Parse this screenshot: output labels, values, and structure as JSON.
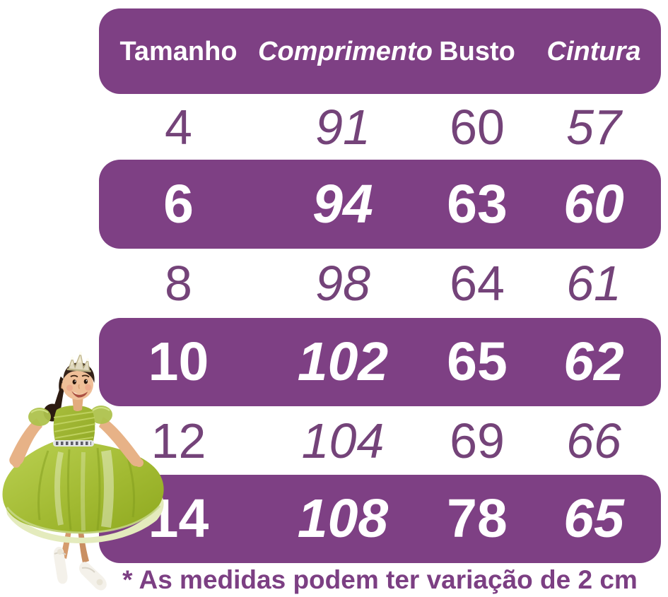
{
  "chart_data": {
    "type": "table",
    "columns": [
      "Tamanho",
      "Comprimento",
      "Busto",
      "Cintura"
    ],
    "rows": [
      [
        4,
        91,
        60,
        57
      ],
      [
        6,
        94,
        63,
        60
      ],
      [
        8,
        98,
        64,
        61
      ],
      [
        10,
        102,
        65,
        62
      ],
      [
        12,
        104,
        69,
        66
      ],
      [
        14,
        108,
        78,
        65
      ]
    ],
    "highlighted_row_indices": [
      1,
      3,
      5
    ],
    "footnote": "* As medidas podem ter variação de 2 cm",
    "units": "cm",
    "layout": "alternating purple pill rows, white rows between"
  },
  "table": {
    "columns": [
      {
        "label": "Tamanho",
        "italic": false
      },
      {
        "label": "Comprimento",
        "italic": true
      },
      {
        "label": "Busto",
        "italic": false
      },
      {
        "label": "Cintura",
        "italic": true
      }
    ],
    "rows": [
      {
        "highlight": false,
        "values": [
          "4",
          "91",
          "60",
          "57"
        ]
      },
      {
        "highlight": true,
        "values": [
          "6",
          "94",
          "63",
          "60"
        ]
      },
      {
        "highlight": false,
        "values": [
          "8",
          "98",
          "64",
          "61"
        ]
      },
      {
        "highlight": true,
        "values": [
          "10",
          "102",
          "65",
          "62"
        ]
      },
      {
        "highlight": false,
        "values": [
          "12",
          "104",
          "69",
          "66"
        ]
      },
      {
        "highlight": true,
        "values": [
          "14",
          "108",
          "78",
          "65"
        ]
      }
    ]
  },
  "footnote": "* As medidas podem ter variação de 2 cm",
  "colors": {
    "bar_purple": "#7e4084",
    "row_text_purple": "#744379",
    "footnote_purple": "#7c3f83",
    "dress_green": "#9cb32e"
  },
  "image": {
    "name": "girl-in-green-dress-photo"
  }
}
